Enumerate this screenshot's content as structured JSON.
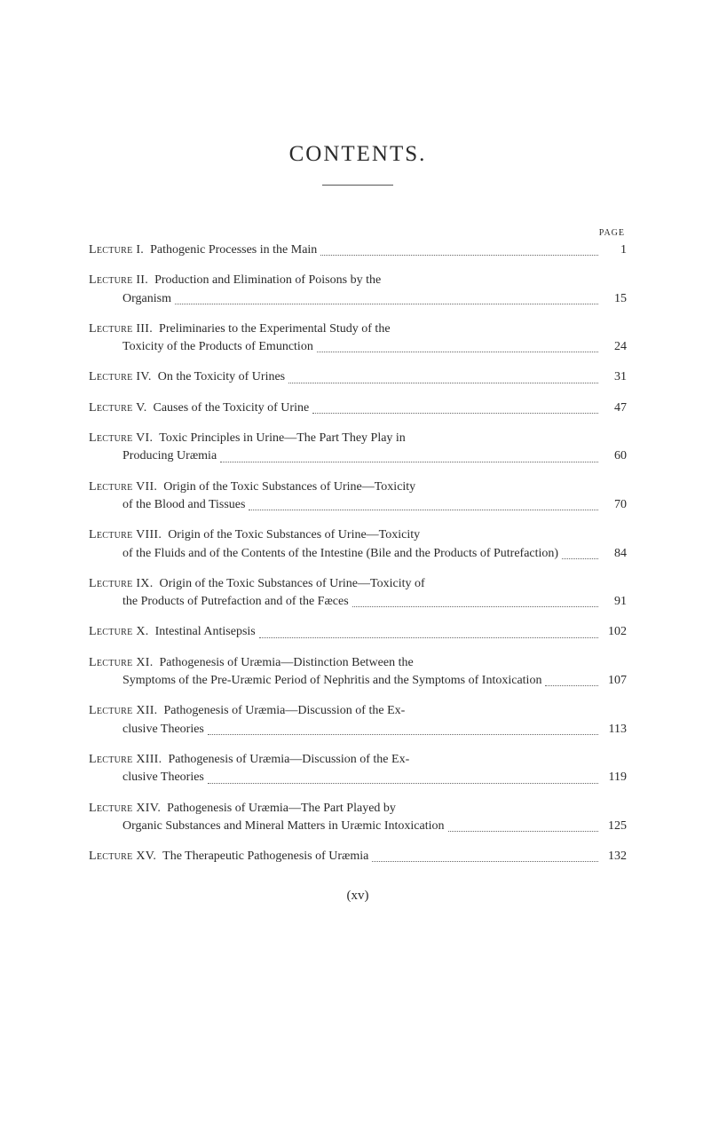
{
  "title": "CONTENTS.",
  "page_label": "PAGE",
  "footer": "(xv)",
  "entries": [
    {
      "label": "Lecture I.",
      "text": "Pathogenic Processes in the Main",
      "page": "1",
      "multiline": false
    },
    {
      "label": "Lecture II.",
      "text": "Production and Elimination of Poisons by the",
      "cont": "Organism",
      "page": "15",
      "multiline": true
    },
    {
      "label": "Lecture III.",
      "text": "Preliminaries to the Experimental Study of the",
      "cont": "Toxicity of the Products of Emunction",
      "page": "24",
      "multiline": true
    },
    {
      "label": "Lecture IV.",
      "text": "On the Toxicity of Urines",
      "page": "31",
      "multiline": false
    },
    {
      "label": "Lecture V.",
      "text": "Causes of the Toxicity of Urine",
      "page": "47",
      "multiline": false
    },
    {
      "label": "Lecture VI.",
      "text": "Toxic Principles in Urine—The Part They Play in",
      "cont": "Producing Uræmia",
      "page": "60",
      "multiline": true
    },
    {
      "label": "Lecture VII.",
      "text": "Origin of the Toxic Substances of Urine—Toxicity",
      "cont": "of the Blood and Tissues",
      "page": "70",
      "multiline": true
    },
    {
      "label": "Lecture VIII.",
      "text": "Origin of the Toxic Substances of Urine—Toxicity",
      "cont": "of the Fluids and of the Contents of the Intestine (Bile and the Products of Putrefaction)",
      "page": "84",
      "multiline": true
    },
    {
      "label": "Lecture IX.",
      "text": "Origin of the Toxic Substances of Urine—Toxicity of",
      "cont": "the Products of Putrefaction and of the Fæces",
      "page": "91",
      "multiline": true
    },
    {
      "label": "Lecture X.",
      "text": "Intestinal Antisepsis",
      "page": "102",
      "multiline": false
    },
    {
      "label": "Lecture XI.",
      "text": "Pathogenesis of Uræmia—Distinction Between the",
      "cont": "Symptoms of the Pre-Uræmic Period of Nephritis and the Symptoms of Intoxication",
      "page": "107",
      "multiline": true
    },
    {
      "label": "Lecture XII.",
      "text": "Pathogenesis of Uræmia—Discussion of the Ex-",
      "cont": "clusive Theories",
      "page": "113",
      "multiline": true
    },
    {
      "label": "Lecture XIII.",
      "text": "Pathogenesis of Uræmia—Discussion of the Ex-",
      "cont": "clusive Theories",
      "page": "119",
      "multiline": true
    },
    {
      "label": "Lecture XIV.",
      "text": "Pathogenesis of Uræmia—The Part Played by",
      "cont": "Organic Substances and Mineral Matters in Uræmic Intoxication",
      "page": "125",
      "multiline": true
    },
    {
      "label": "Lecture XV.",
      "text": "The Therapeutic Pathogenesis of Uræmia",
      "page": "132",
      "multiline": false
    }
  ]
}
